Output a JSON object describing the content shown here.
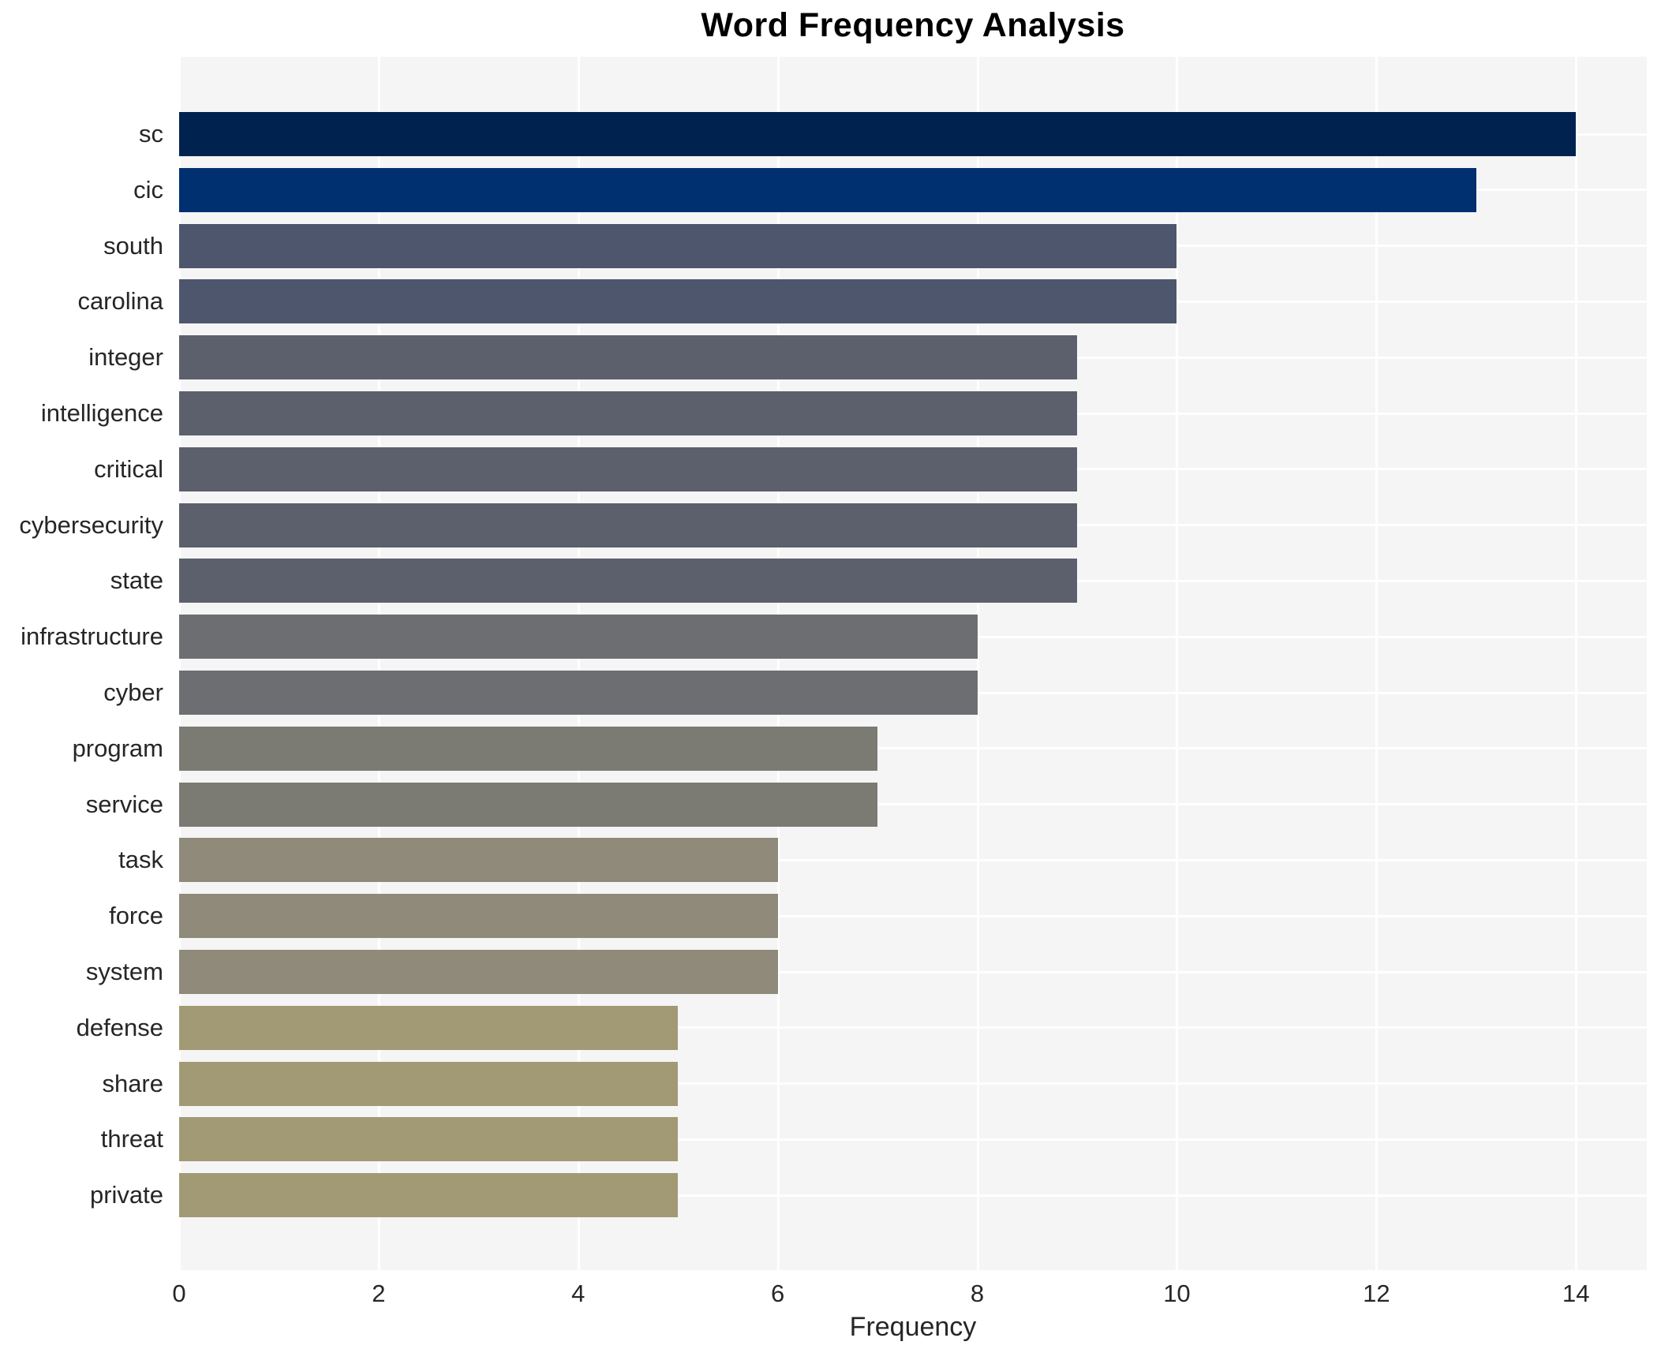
{
  "title": "Word Frequency Analysis",
  "chart_data": {
    "type": "bar",
    "orientation": "horizontal",
    "title": "Word Frequency Analysis",
    "xlabel": "Frequency",
    "ylabel": "",
    "categories": [
      "sc",
      "cic",
      "south",
      "carolina",
      "integer",
      "intelligence",
      "critical",
      "cybersecurity",
      "state",
      "infrastructure",
      "cyber",
      "program",
      "service",
      "task",
      "force",
      "system",
      "defense",
      "share",
      "threat",
      "private"
    ],
    "values": [
      14,
      13,
      10,
      10,
      9,
      9,
      9,
      9,
      9,
      8,
      8,
      7,
      7,
      6,
      6,
      6,
      5,
      5,
      5,
      5
    ],
    "bar_colors": [
      "#00224f",
      "#00306f",
      "#4d566c",
      "#4d566c",
      "#5c606c",
      "#5c606c",
      "#5c606c",
      "#5c606c",
      "#5c606c",
      "#6c6e71",
      "#6c6e71",
      "#7b7b74",
      "#7b7b74",
      "#8f8a79",
      "#8f8a79",
      "#8f8a79",
      "#a19a74",
      "#a19a74",
      "#a19a74",
      "#a19a74"
    ],
    "xticks": [
      0,
      2,
      4,
      6,
      8,
      10,
      12,
      14
    ],
    "xlim": [
      0,
      14.71
    ],
    "grid": true,
    "legend": "none",
    "plot_background": "#f5f5f6",
    "grid_color": "#ffffff",
    "text_color": "#262626",
    "title_color": "#000000"
  }
}
